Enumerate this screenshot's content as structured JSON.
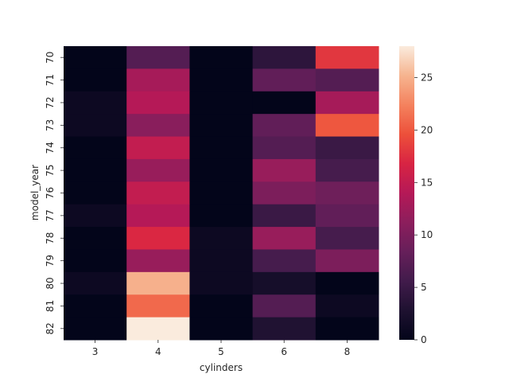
{
  "chart_data": {
    "type": "heatmap",
    "title": "",
    "xlabel": "cylinders",
    "ylabel": "model_year",
    "x_categories": [
      "3",
      "4",
      "5",
      "6",
      "8"
    ],
    "y_categories": [
      "70",
      "71",
      "72",
      "73",
      "74",
      "75",
      "76",
      "77",
      "78",
      "79",
      "80",
      "81",
      "82"
    ],
    "values": [
      [
        0,
        7,
        0,
        4,
        18
      ],
      [
        0,
        13,
        0,
        8,
        7
      ],
      [
        1,
        14,
        0,
        0,
        13
      ],
      [
        1,
        11,
        0,
        8,
        20
      ],
      [
        0,
        15,
        0,
        7,
        5
      ],
      [
        0,
        12,
        0,
        12,
        6
      ],
      [
        0,
        15,
        0,
        10,
        9
      ],
      [
        1,
        14,
        0,
        5,
        8
      ],
      [
        0,
        17,
        1,
        12,
        6
      ],
      [
        0,
        12,
        1,
        6,
        10
      ],
      [
        1,
        25,
        1,
        2,
        0
      ],
      [
        0,
        21,
        0,
        7,
        1
      ],
      [
        0,
        28,
        0,
        3,
        0
      ]
    ],
    "colorbar": {
      "min": 0,
      "max": 28,
      "ticks": [
        0,
        5,
        10,
        15,
        20,
        25
      ],
      "colormap": "rocket"
    }
  }
}
